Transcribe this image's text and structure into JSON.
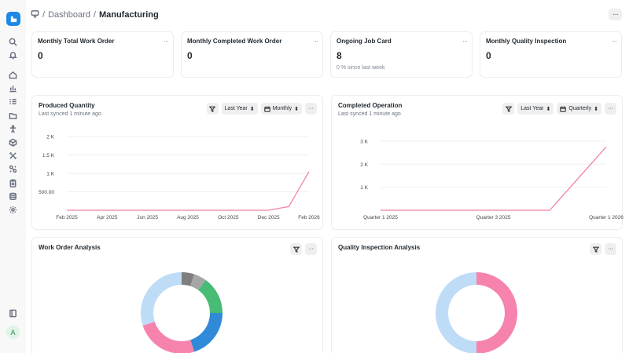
{
  "sidebar": {
    "items": [
      "search-icon",
      "bell-icon",
      "home-icon",
      "bar-chart-icon",
      "list-icon",
      "folder-icon",
      "accessibility-icon",
      "box-icon",
      "tools-icon",
      "puzzle-icon",
      "clipboard-icon",
      "database-icon",
      "gear-icon"
    ],
    "bottom": [
      "book-icon"
    ],
    "avatar": "A"
  },
  "breadcrumb": {
    "items": [
      "Dashboard"
    ],
    "current": "Manufacturing",
    "separator": "/"
  },
  "stats": [
    {
      "title": "Monthly Total Work Order",
      "value": "0",
      "sub": ""
    },
    {
      "title": "Monthly Completed Work Order",
      "value": "0",
      "sub": ""
    },
    {
      "title": "Ongoing Job Card",
      "value": "8",
      "sub": "0 % since last week"
    },
    {
      "title": "Monthly Quality Inspection",
      "value": "0",
      "sub": ""
    }
  ],
  "produced": {
    "title": "Produced Quantity",
    "sub": "Last synced 1 minute ago",
    "period": "Last Year",
    "interval": "Monthly",
    "chart_data": {
      "type": "line",
      "x": [
        "Feb 2025",
        "Mar 2025",
        "Apr 2025",
        "May 2025",
        "Jun 2025",
        "Jul 2025",
        "Aug 2025",
        "Sep 2025",
        "Oct 2025",
        "Nov 2025",
        "Dec 2025",
        "Jan 2026",
        "Feb 2026"
      ],
      "x_tick_labels": [
        "Feb 2025",
        "Apr 2025",
        "Jun 2025",
        "Aug 2025",
        "Oct 2025",
        "Dec 2025",
        "Feb 2026"
      ],
      "y_tick_labels": [
        "500.00",
        "1 K",
        "1.5 K",
        "2 K"
      ],
      "series": [
        {
          "values": [
            0,
            0,
            0,
            0,
            0,
            0,
            0,
            0,
            0,
            0,
            0,
            100,
            1050
          ]
        }
      ],
      "ylim": [
        0,
        2000
      ],
      "color": "#f2849e"
    }
  },
  "completed": {
    "title": "Completed Operation",
    "sub": "Last synced 1 minute ago",
    "period": "Last Year",
    "interval": "Quarterly",
    "chart_data": {
      "type": "line",
      "x": [
        "Quarter 1 2025",
        "Quarter 2 2025",
        "Quarter 3 2025",
        "Quarter 4 2025",
        "Quarter 1 2026"
      ],
      "x_tick_labels": [
        "Quarter 1 2025",
        "Quarter 3 2025",
        "Quarter 1 2026"
      ],
      "y_tick_labels": [
        "1 K",
        "2 K",
        "3 K"
      ],
      "series": [
        {
          "values": [
            0,
            0,
            0,
            0,
            2750
          ]
        }
      ],
      "ylim": [
        0,
        3200
      ],
      "color": "#f2849e"
    }
  },
  "work_order": {
    "title": "Work Order Analysis",
    "chart_data": {
      "type": "pie",
      "values": [
        5,
        5,
        15,
        20,
        25,
        30
      ],
      "colors": [
        "#7f7f7f",
        "#a6a6a6",
        "#48bb74",
        "#318ad8",
        "#f683ae",
        "#bfdcf7"
      ]
    }
  },
  "quality": {
    "title": "Quality Inspection Analysis",
    "chart_data": {
      "type": "pie",
      "values": [
        50,
        50
      ],
      "colors": [
        "#f683ae",
        "#bfdcf7"
      ]
    }
  }
}
